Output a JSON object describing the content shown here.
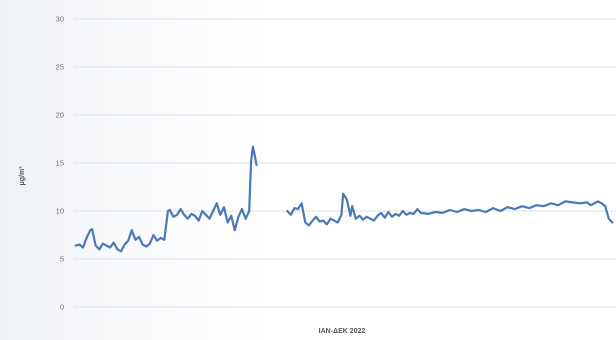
{
  "chart_data": {
    "type": "line",
    "title": "",
    "xlabel": "IAN-ΔΕΚ 2022",
    "ylabel": "μg/m³",
    "ylim": [
      0,
      30
    ],
    "yticks": [
      0,
      5,
      10,
      15,
      20,
      25,
      30
    ],
    "grid": true,
    "line_color": "#4a78b8",
    "x_unit": "day of 2022",
    "series": [
      {
        "segments": [
          [
            [
              1,
              6.4
            ],
            [
              3,
              6.5
            ],
            [
              5,
              6.2
            ],
            [
              7,
              7.2
            ],
            [
              9,
              8.0
            ],
            [
              10,
              8.1
            ],
            [
              12,
              6.4
            ],
            [
              14,
              6.0
            ],
            [
              16,
              6.6
            ],
            [
              18,
              6.4
            ],
            [
              20,
              6.2
            ],
            [
              22,
              6.7
            ],
            [
              24,
              6.0
            ],
            [
              26,
              5.8
            ],
            [
              28,
              6.5
            ],
            [
              30,
              6.9
            ],
            [
              32,
              8.0
            ],
            [
              34,
              7.0
            ],
            [
              36,
              7.3
            ],
            [
              38,
              6.5
            ],
            [
              40,
              6.3
            ],
            [
              42,
              6.6
            ],
            [
              44,
              7.5
            ],
            [
              46,
              6.9
            ],
            [
              48,
              7.2
            ],
            [
              50,
              7.0
            ],
            [
              52,
              10.0
            ],
            [
              53,
              10.1
            ],
            [
              55,
              9.4
            ],
            [
              57,
              9.6
            ],
            [
              59,
              10.2
            ],
            [
              61,
              9.6
            ],
            [
              63,
              9.2
            ],
            [
              65,
              9.7
            ],
            [
              67,
              9.5
            ],
            [
              69,
              9.0
            ],
            [
              71,
              10.0
            ],
            [
              73,
              9.6
            ],
            [
              75,
              9.2
            ],
            [
              77,
              10.0
            ],
            [
              79,
              10.8
            ],
            [
              81,
              9.6
            ],
            [
              83,
              10.4
            ],
            [
              85,
              8.8
            ],
            [
              87,
              9.5
            ],
            [
              89,
              8.0
            ],
            [
              91,
              9.4
            ],
            [
              93,
              10.2
            ],
            [
              95,
              9.2
            ],
            [
              97,
              10.0
            ],
            [
              98,
              15.2
            ],
            [
              99,
              16.7
            ],
            [
              100,
              15.8
            ],
            [
              101,
              14.8
            ]
          ],
          [
            [
              118,
              10.0
            ],
            [
              120,
              9.6
            ],
            [
              122,
              10.3
            ],
            [
              124,
              10.2
            ],
            [
              126,
              10.8
            ],
            [
              128,
              8.8
            ],
            [
              130,
              8.5
            ],
            [
              132,
              9.0
            ],
            [
              134,
              9.4
            ],
            [
              136,
              8.9
            ],
            [
              138,
              9.0
            ],
            [
              140,
              8.6
            ],
            [
              142,
              9.2
            ],
            [
              144,
              9.0
            ],
            [
              146,
              8.8
            ],
            [
              148,
              9.6
            ],
            [
              149,
              11.8
            ],
            [
              151,
              11.2
            ],
            [
              153,
              9.5
            ],
            [
              154,
              10.5
            ],
            [
              156,
              9.2
            ],
            [
              158,
              9.5
            ],
            [
              160,
              9.1
            ],
            [
              162,
              9.4
            ],
            [
              164,
              9.2
            ],
            [
              166,
              9.0
            ],
            [
              168,
              9.5
            ],
            [
              170,
              9.8
            ],
            [
              172,
              9.3
            ],
            [
              174,
              9.9
            ],
            [
              176,
              9.4
            ],
            [
              178,
              9.7
            ],
            [
              180,
              9.5
            ],
            [
              182,
              10.0
            ],
            [
              184,
              9.6
            ],
            [
              186,
              9.8
            ],
            [
              188,
              9.7
            ],
            [
              190,
              10.2
            ],
            [
              192,
              9.8
            ],
            [
              196,
              9.7
            ],
            [
              200,
              9.9
            ],
            [
              204,
              9.8
            ],
            [
              208,
              10.1
            ],
            [
              212,
              9.9
            ],
            [
              216,
              10.2
            ],
            [
              220,
              10.0
            ],
            [
              224,
              10.1
            ],
            [
              228,
              9.9
            ],
            [
              232,
              10.3
            ],
            [
              236,
              10.0
            ],
            [
              240,
              10.4
            ],
            [
              244,
              10.2
            ],
            [
              248,
              10.5
            ],
            [
              252,
              10.3
            ],
            [
              256,
              10.6
            ],
            [
              260,
              10.5
            ],
            [
              264,
              10.8
            ],
            [
              268,
              10.6
            ],
            [
              272,
              11.0
            ],
            [
              276,
              10.9
            ],
            [
              280,
              10.8
            ],
            [
              284,
              10.9
            ],
            [
              286,
              10.6
            ],
            [
              288,
              10.8
            ],
            [
              290,
              11.0
            ],
            [
              292,
              10.8
            ],
            [
              294,
              10.5
            ],
            [
              296,
              9.2
            ],
            [
              298,
              8.8
            ]
          ]
        ]
      }
    ]
  }
}
